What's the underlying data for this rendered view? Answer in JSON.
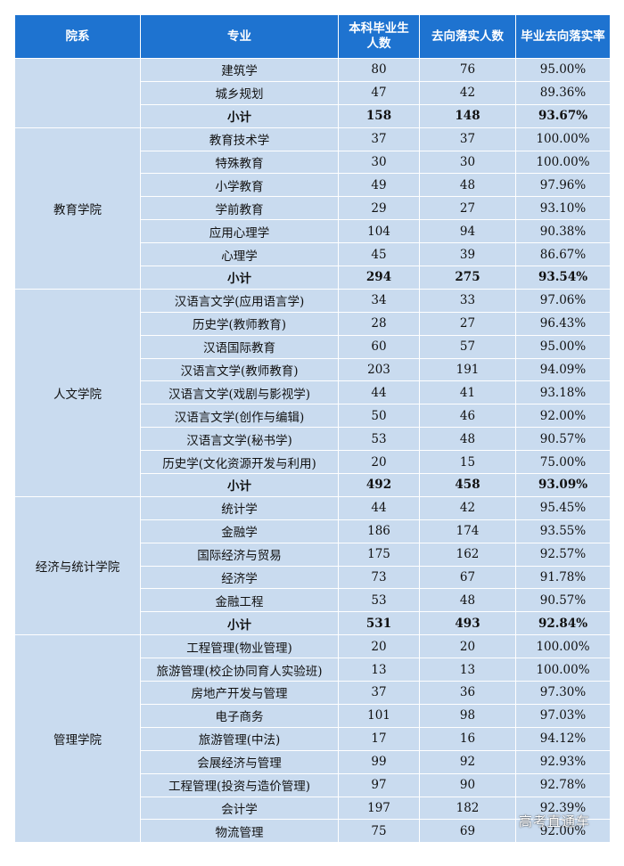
{
  "table": {
    "headers": [
      "院系",
      "专业",
      "本科毕业生\n人数",
      "去向落实人数",
      "毕业去向落实率"
    ],
    "groups": [
      {
        "college": "",
        "rows": [
          {
            "major": "建筑学",
            "graduates": "80",
            "placed": "76",
            "rate": "95.00%"
          },
          {
            "major": "城乡规划",
            "graduates": "47",
            "placed": "42",
            "rate": "89.36%"
          },
          {
            "major": "小计",
            "graduates": "158",
            "placed": "148",
            "rate": "93.67%",
            "subtotal": true
          }
        ]
      },
      {
        "college": "教育学院",
        "rows": [
          {
            "major": "教育技术学",
            "graduates": "37",
            "placed": "37",
            "rate": "100.00%"
          },
          {
            "major": "特殊教育",
            "graduates": "30",
            "placed": "30",
            "rate": "100.00%"
          },
          {
            "major": "小学教育",
            "graduates": "49",
            "placed": "48",
            "rate": "97.96%"
          },
          {
            "major": "学前教育",
            "graduates": "29",
            "placed": "27",
            "rate": "93.10%"
          },
          {
            "major": "应用心理学",
            "graduates": "104",
            "placed": "94",
            "rate": "90.38%"
          },
          {
            "major": "心理学",
            "graduates": "45",
            "placed": "39",
            "rate": "86.67%"
          },
          {
            "major": "小计",
            "graduates": "294",
            "placed": "275",
            "rate": "93.54%",
            "subtotal": true
          }
        ]
      },
      {
        "college": "人文学院",
        "rows": [
          {
            "major": "汉语言文学(应用语言学)",
            "graduates": "34",
            "placed": "33",
            "rate": "97.06%"
          },
          {
            "major": "历史学(教师教育)",
            "graduates": "28",
            "placed": "27",
            "rate": "96.43%"
          },
          {
            "major": "汉语国际教育",
            "graduates": "60",
            "placed": "57",
            "rate": "95.00%"
          },
          {
            "major": "汉语言文学(教师教育)",
            "graduates": "203",
            "placed": "191",
            "rate": "94.09%"
          },
          {
            "major": "汉语言文学(戏剧与影视学)",
            "graduates": "44",
            "placed": "41",
            "rate": "93.18%"
          },
          {
            "major": "汉语言文学(创作与编辑)",
            "graduates": "50",
            "placed": "46",
            "rate": "92.00%"
          },
          {
            "major": "汉语言文学(秘书学)",
            "graduates": "53",
            "placed": "48",
            "rate": "90.57%"
          },
          {
            "major": "历史学(文化资源开发与利用)",
            "graduates": "20",
            "placed": "15",
            "rate": "75.00%"
          },
          {
            "major": "小计",
            "graduates": "492",
            "placed": "458",
            "rate": "93.09%",
            "subtotal": true
          }
        ]
      },
      {
        "college": "经济与统计学院",
        "rows": [
          {
            "major": "统计学",
            "graduates": "44",
            "placed": "42",
            "rate": "95.45%"
          },
          {
            "major": "金融学",
            "graduates": "186",
            "placed": "174",
            "rate": "93.55%"
          },
          {
            "major": "国际经济与贸易",
            "graduates": "175",
            "placed": "162",
            "rate": "92.57%"
          },
          {
            "major": "经济学",
            "graduates": "73",
            "placed": "67",
            "rate": "91.78%"
          },
          {
            "major": "金融工程",
            "graduates": "53",
            "placed": "48",
            "rate": "90.57%"
          },
          {
            "major": "小计",
            "graduates": "531",
            "placed": "493",
            "rate": "92.84%",
            "subtotal": true
          }
        ]
      },
      {
        "college": "管理学院",
        "rows": [
          {
            "major": "工程管理(物业管理)",
            "graduates": "20",
            "placed": "20",
            "rate": "100.00%"
          },
          {
            "major": "旅游管理(校企协同育人实验班)",
            "graduates": "13",
            "placed": "13",
            "rate": "100.00%"
          },
          {
            "major": "房地产开发与管理",
            "graduates": "37",
            "placed": "36",
            "rate": "97.30%"
          },
          {
            "major": "电子商务",
            "graduates": "101",
            "placed": "98",
            "rate": "97.03%"
          },
          {
            "major": "旅游管理(中法)",
            "graduates": "17",
            "placed": "16",
            "rate": "94.12%"
          },
          {
            "major": "会展经济与管理",
            "graduates": "99",
            "placed": "92",
            "rate": "92.93%"
          },
          {
            "major": "工程管理(投资与造价管理)",
            "graduates": "97",
            "placed": "90",
            "rate": "92.78%"
          },
          {
            "major": "会计学",
            "graduates": "197",
            "placed": "182",
            "rate": "92.39%"
          },
          {
            "major": "物流管理",
            "graduates": "75",
            "placed": "69",
            "rate": "92.00%"
          }
        ]
      }
    ]
  },
  "watermark": "高考直通车"
}
